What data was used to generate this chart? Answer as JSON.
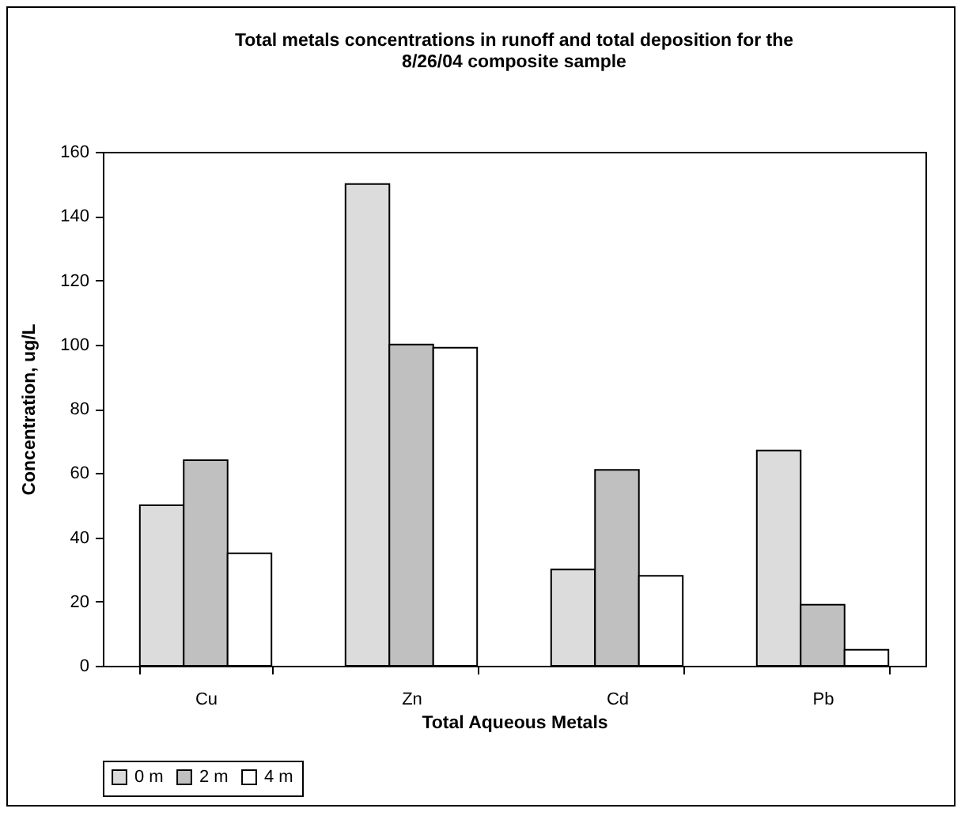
{
  "chart_data": {
    "type": "bar",
    "title": "Total metals concentrations in runoff and total deposition for the 8/26/04 composite sample",
    "xlabel": "Total Aqueous Metals",
    "ylabel": "Concentration, ug/L",
    "categories": [
      "Cu",
      "Zn",
      "Cd",
      "Pb"
    ],
    "series": [
      {
        "name": "0 m",
        "color": "#dcdcdc",
        "values": [
          50,
          150,
          30,
          67
        ]
      },
      {
        "name": "2 m",
        "color": "#c0c0c0",
        "values": [
          64,
          100,
          61,
          19
        ]
      },
      {
        "name": "4 m",
        "color": "#ffffff",
        "values": [
          35,
          99,
          28,
          5
        ]
      }
    ],
    "ylim": [
      0,
      160
    ],
    "yticks": [
      0,
      20,
      40,
      60,
      80,
      100,
      120,
      140,
      160
    ],
    "grid": false,
    "legend": "bottom"
  }
}
